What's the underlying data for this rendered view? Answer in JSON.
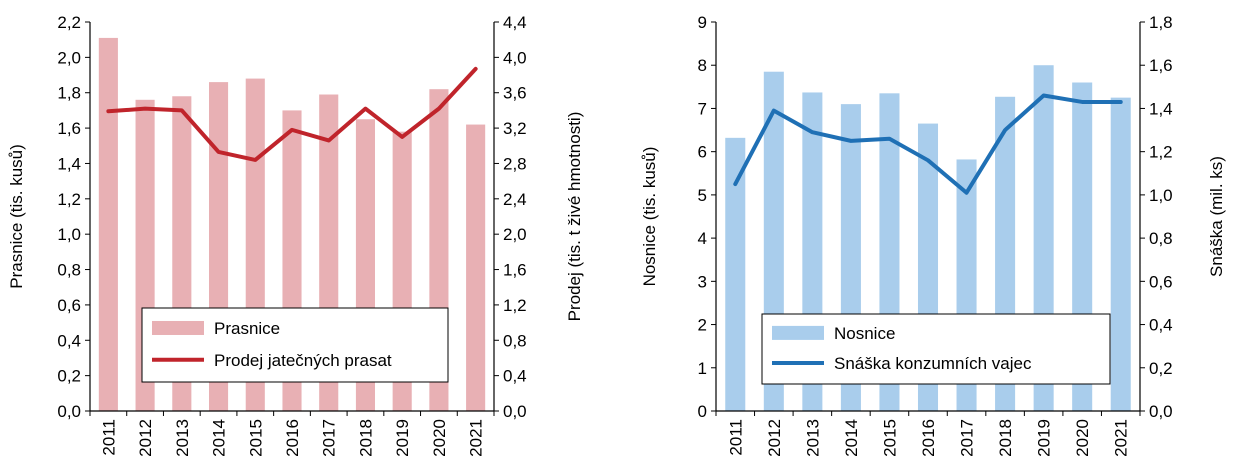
{
  "chart_data": [
    {
      "type": "bar+line",
      "categories": [
        "2011",
        "2012",
        "2013",
        "2014",
        "2015",
        "2016",
        "2017",
        "2018",
        "2019",
        "2020",
        "2021"
      ],
      "bar_series": {
        "name": "Prasnice",
        "color": "#e8b0b4",
        "values": [
          2.11,
          1.76,
          1.78,
          1.86,
          1.88,
          1.7,
          1.79,
          1.65,
          1.58,
          1.82,
          1.62
        ]
      },
      "line_series": {
        "name": "Prodej jatečných prasat",
        "color": "#c0242b",
        "values": [
          3.39,
          3.42,
          3.4,
          2.93,
          2.84,
          3.18,
          3.06,
          3.42,
          3.1,
          3.42,
          3.87
        ]
      },
      "ylabel_left": "Prasnice (tis. kusů)",
      "ylabel_right": "Prodej (tis. t živé hmotnosti)",
      "ylim_left": [
        0,
        2.2
      ],
      "ylim_right": [
        0,
        4.4
      ],
      "yticks_left": [
        "0,0",
        "0,2",
        "0,4",
        "0,6",
        "0,8",
        "1,0",
        "1,2",
        "1,4",
        "1,6",
        "1,8",
        "2,0",
        "2,2"
      ],
      "yticks_right": [
        "0,0",
        "0,4",
        "0,8",
        "1,2",
        "1,6",
        "2,0",
        "2,4",
        "2,8",
        "3,2",
        "3,6",
        "4,0",
        "4,4"
      ],
      "legend_position": "bottom-right"
    },
    {
      "type": "bar+line",
      "categories": [
        "2011",
        "2012",
        "2013",
        "2014",
        "2015",
        "2016",
        "2017",
        "2018",
        "2019",
        "2020",
        "2021"
      ],
      "bar_series": {
        "name": "Nosnice",
        "color": "#a9cdec",
        "values": [
          6.32,
          7.85,
          7.37,
          7.1,
          7.35,
          6.65,
          5.82,
          7.27,
          8.0,
          7.6,
          7.25
        ]
      },
      "line_series": {
        "name": "Snáška konzumních vajec",
        "color": "#1f70b5",
        "values": [
          1.05,
          1.39,
          1.29,
          1.25,
          1.26,
          1.16,
          1.01,
          1.3,
          1.46,
          1.43,
          1.43
        ]
      },
      "ylabel_left": "Nosnice (tis. kusů)",
      "ylabel_right": "Snáška (mil. ks)",
      "ylim_left": [
        0,
        9
      ],
      "ylim_right": [
        0,
        1.8
      ],
      "yticks_left": [
        "0",
        "1",
        "2",
        "3",
        "4",
        "5",
        "6",
        "7",
        "8",
        "9"
      ],
      "yticks_right": [
        "0,0",
        "0,2",
        "0,4",
        "0,6",
        "0,8",
        "1,0",
        "1,2",
        "1,4",
        "1,6",
        "1,8"
      ],
      "legend_position": "bottom-right"
    }
  ]
}
